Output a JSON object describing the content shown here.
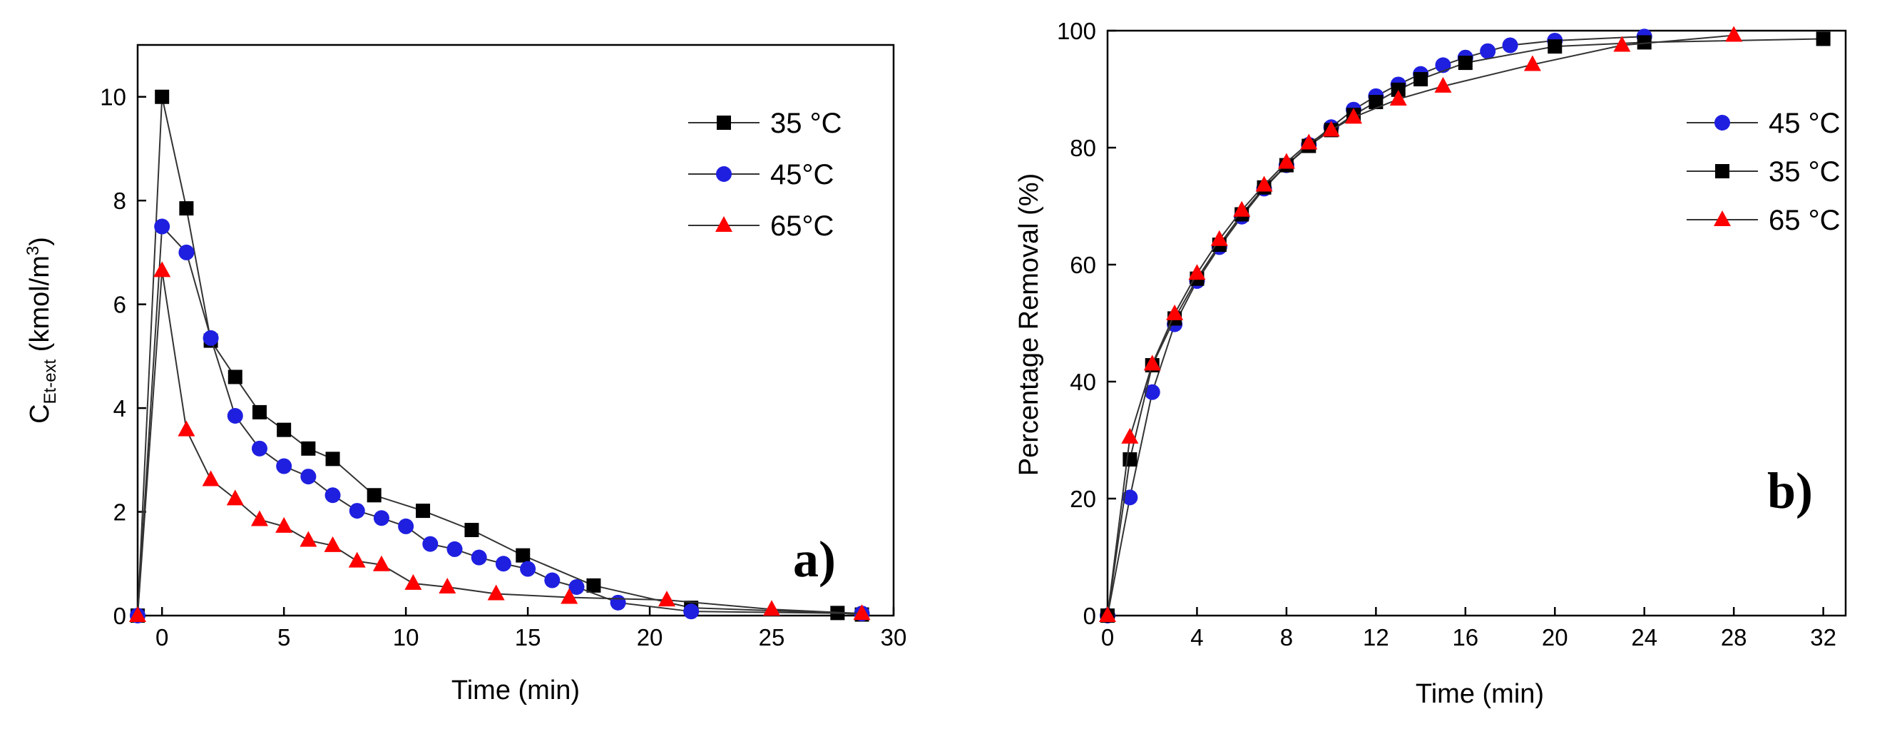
{
  "chart_data": [
    {
      "type": "line",
      "panel_label": "a)",
      "xlabel": "Time (min)",
      "ylabel": {
        "main": "C",
        "subscript": "Et-ext",
        "units_prefix": " (kmol/m",
        "units_sup": "3",
        "units_suffix": ")"
      },
      "xlim": [
        -1,
        30
      ],
      "ylim": [
        0,
        11
      ],
      "xticks": [
        0,
        5,
        10,
        15,
        20,
        25,
        30
      ],
      "yticks": [
        0,
        2,
        4,
        6,
        8,
        10
      ],
      "legend_position": "top-right",
      "series": [
        {
          "name": "35 °C",
          "marker": "square",
          "color": "#000000",
          "x": [
            -1,
            0,
            1,
            2,
            3,
            4,
            5,
            6,
            7,
            8.7,
            10.7,
            12.7,
            14.8,
            17.7,
            21.7,
            27.7,
            28.7
          ],
          "y": [
            0,
            10.0,
            7.85,
            5.3,
            4.6,
            3.92,
            3.58,
            3.22,
            3.02,
            2.32,
            2.02,
            1.65,
            1.16,
            0.58,
            0.15,
            0.05,
            0.02
          ]
        },
        {
          "name": "45°C",
          "marker": "circle",
          "color": "#1f1fe0",
          "x": [
            -1,
            0,
            1,
            2,
            3,
            4,
            5,
            6,
            7,
            8,
            9,
            10,
            11,
            12,
            13,
            14,
            15,
            16,
            17,
            18.7,
            21.7,
            28.7
          ],
          "y": [
            0,
            7.5,
            7.0,
            5.35,
            3.85,
            3.22,
            2.88,
            2.68,
            2.32,
            2.02,
            1.88,
            1.72,
            1.38,
            1.28,
            1.12,
            1.0,
            0.9,
            0.68,
            0.55,
            0.25,
            0.08,
            0.04
          ]
        },
        {
          "name": "65°C",
          "marker": "triangle",
          "color": "#ff0000",
          "x": [
            -1,
            0,
            1,
            2,
            3,
            4,
            5,
            6,
            7,
            8,
            9,
            10.3,
            11.7,
            13.7,
            16.7,
            20.7,
            25.0,
            28.7
          ],
          "y": [
            0,
            6.65,
            3.58,
            2.62,
            2.25,
            1.85,
            1.72,
            1.45,
            1.35,
            1.05,
            0.98,
            0.62,
            0.55,
            0.42,
            0.35,
            0.3,
            0.12,
            0.04
          ]
        }
      ]
    },
    {
      "type": "line",
      "panel_label": "b)",
      "xlabel": "Time (min)",
      "ylabel": "Percentage Removal (%)",
      "xlim": [
        0,
        33
      ],
      "ylim": [
        0,
        100
      ],
      "xticks": [
        0,
        4,
        8,
        12,
        16,
        20,
        24,
        28,
        32
      ],
      "yticks": [
        0,
        20,
        40,
        60,
        80,
        100
      ],
      "legend_position": "center-right",
      "series": [
        {
          "name": "45 °C",
          "marker": "circle",
          "color": "#1f1fe0",
          "x": [
            0,
            1,
            2,
            3,
            4,
            5,
            6,
            7,
            8,
            9,
            10,
            11,
            12,
            13,
            14,
            15,
            16,
            17,
            18,
            20,
            24
          ],
          "y": [
            0,
            20.2,
            38.2,
            49.8,
            57.2,
            63.0,
            68.2,
            73.0,
            77.0,
            80.5,
            83.5,
            86.5,
            88.8,
            90.8,
            92.6,
            94.1,
            95.4,
            96.5,
            97.5,
            98.3,
            99.0
          ]
        },
        {
          "name": "35 °C",
          "marker": "square",
          "color": "#000000",
          "x": [
            0,
            1,
            2,
            3,
            4,
            5,
            6,
            7,
            8,
            9,
            10,
            11,
            12,
            13,
            14,
            16,
            20,
            24,
            32
          ],
          "y": [
            0,
            26.7,
            42.8,
            50.8,
            57.6,
            63.4,
            68.6,
            73.2,
            77.0,
            80.3,
            83.0,
            85.6,
            87.8,
            89.9,
            91.7,
            94.5,
            97.3,
            98.0,
            98.6
          ]
        },
        {
          "name": "65 °C",
          "marker": "triangle",
          "color": "#ff0000",
          "x": [
            0,
            1,
            2,
            3,
            4,
            5,
            6,
            7,
            8,
            9,
            10,
            11,
            13,
            15,
            19,
            23,
            28
          ],
          "y": [
            0,
            30.5,
            43.0,
            51.6,
            58.5,
            64.3,
            69.3,
            73.6,
            77.5,
            80.8,
            83.0,
            85.2,
            88.3,
            90.5,
            94.2,
            97.5,
            99.2
          ]
        }
      ]
    }
  ]
}
